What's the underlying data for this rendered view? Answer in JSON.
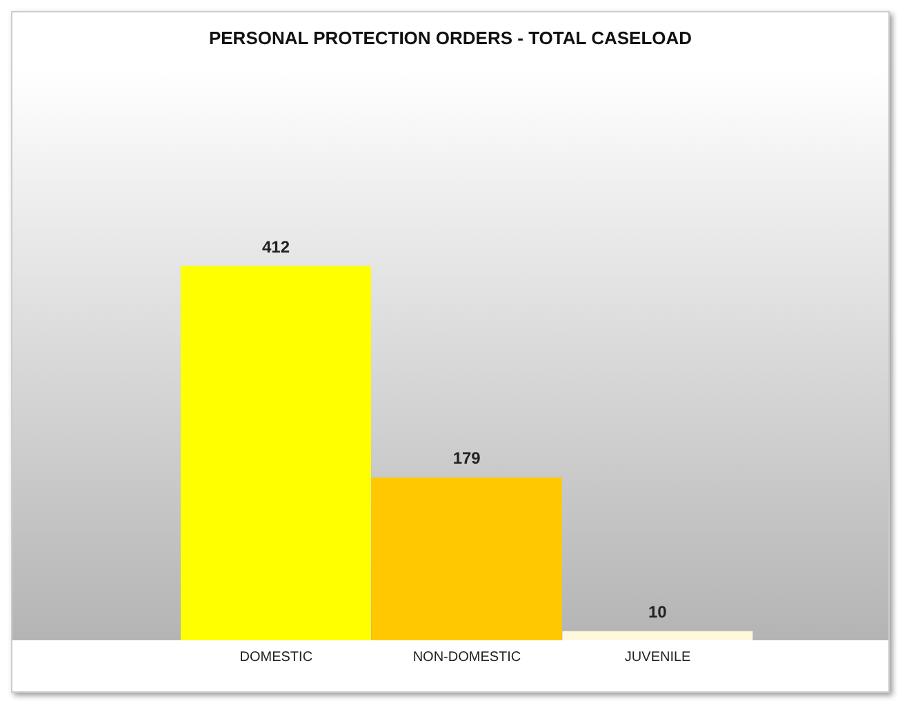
{
  "chart_data": {
    "type": "bar",
    "title": "PERSONAL PROTECTION ORDERS - TOTAL CASELOAD",
    "categories": [
      "DOMESTIC",
      "NON-DOMESTIC",
      "JUVENILE"
    ],
    "values": [
      412,
      179,
      10
    ],
    "colors": [
      "#ffff00",
      "#ffc800",
      "#fff8dc"
    ],
    "data_labels": true
  }
}
